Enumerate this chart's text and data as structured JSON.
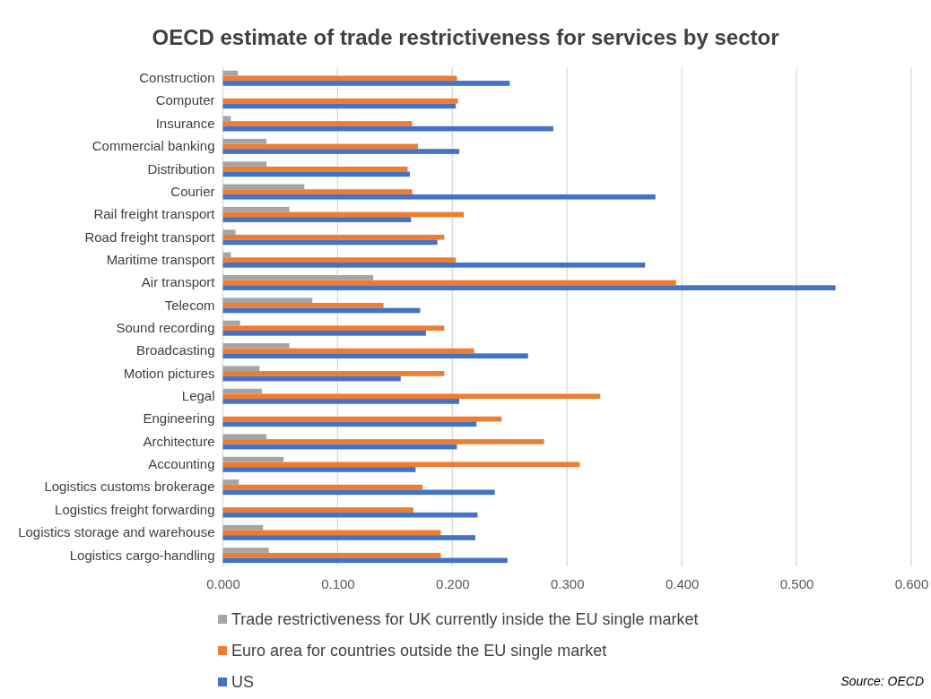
{
  "chart_data": {
    "type": "bar",
    "orientation": "horizontal",
    "title": "OECD estimate of trade restrictiveness for services by sector",
    "categories": [
      "Construction",
      "Computer",
      "Insurance",
      "Commercial banking",
      "Distribution",
      "Courier",
      "Rail freight transport",
      "Road freight transport",
      "Maritime transport",
      "Air transport",
      "Telecom",
      "Sound recording",
      "Broadcasting",
      "Motion pictures",
      "Legal",
      "Engineering",
      "Architecture",
      "Accounting",
      "Logistics customs brokerage",
      "Logistics freight forwarding",
      "Logistics storage and warehouse",
      "Logistics cargo-handling"
    ],
    "series": [
      {
        "name": "Trade restrictiveness for UK currently inside the EU single market",
        "color": "#a5a5a5",
        "values": [
          0.013,
          0,
          0.007,
          0.038,
          0.038,
          0.071,
          0.058,
          0.011,
          0.007,
          0.131,
          0.078,
          0.015,
          0.058,
          0.032,
          0.034,
          0,
          0.038,
          0.053,
          0.014,
          0,
          0.035,
          0.04
        ]
      },
      {
        "name": "Euro area for countries outside the EU single market",
        "color": "#ed7d31",
        "values": [
          0.204,
          0.205,
          0.165,
          0.17,
          0.161,
          0.165,
          0.21,
          0.193,
          0.203,
          0.395,
          0.14,
          0.193,
          0.219,
          0.193,
          0.329,
          0.243,
          0.28,
          0.311,
          0.174,
          0.166,
          0.19,
          0.19
        ]
      },
      {
        "name": "US",
        "color": "#4472c4",
        "values": [
          0.25,
          0.203,
          0.288,
          0.206,
          0.163,
          0.377,
          0.164,
          0.187,
          0.368,
          0.534,
          0.172,
          0.177,
          0.266,
          0.155,
          0.206,
          0.221,
          0.204,
          0.168,
          0.237,
          0.222,
          0.22,
          0.248
        ]
      }
    ],
    "xlim": [
      0,
      0.6
    ],
    "xticks": [
      {
        "value": 0,
        "label": "0.000"
      },
      {
        "value": 0.1,
        "label": "0.100"
      },
      {
        "value": 0.2,
        "label": "0.200"
      },
      {
        "value": 0.3,
        "label": "0.300"
      },
      {
        "value": 0.4,
        "label": "0.400"
      },
      {
        "value": 0.5,
        "label": "0.500"
      },
      {
        "value": 0.6,
        "label": "0.600"
      }
    ],
    "grid": "x",
    "legend": "bottom",
    "annotations": [
      "Source: OECD"
    ]
  }
}
